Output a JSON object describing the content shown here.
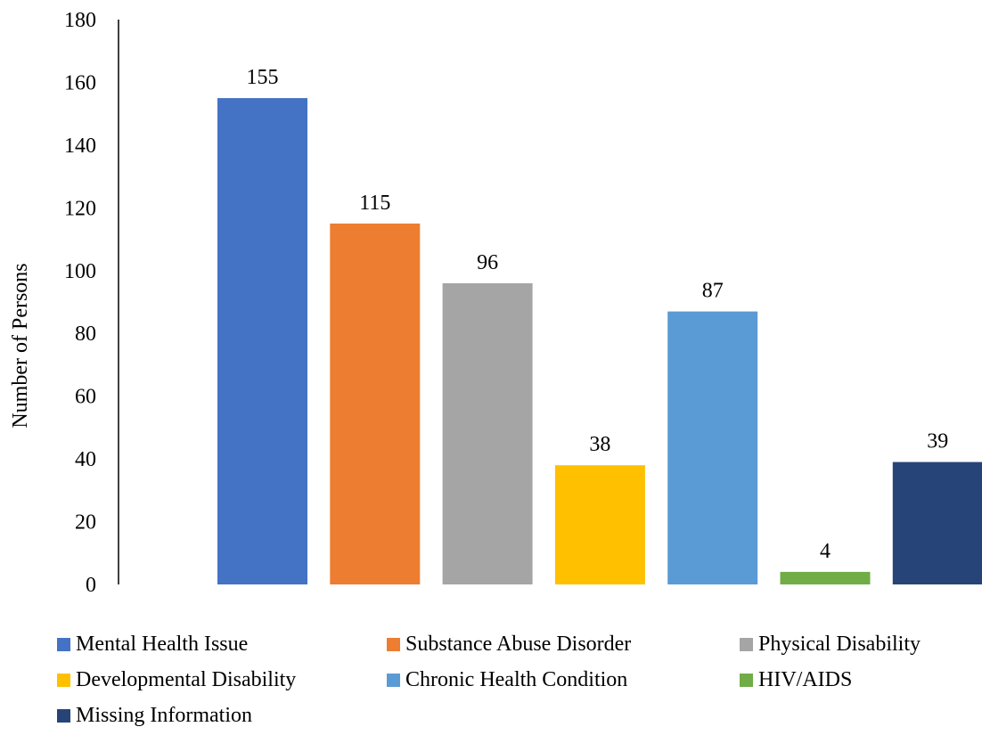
{
  "chart_data": {
    "type": "bar",
    "ylabel": "Number of Persons",
    "ylim": [
      0,
      180
    ],
    "yticks": [
      0,
      20,
      40,
      60,
      80,
      100,
      120,
      140,
      160,
      180
    ],
    "grid": false,
    "legend_position": "bottom",
    "series": [
      {
        "name": "Mental Health Issue",
        "value": 155,
        "color": "#4472C4"
      },
      {
        "name": "Substance Abuse Disorder",
        "value": 115,
        "color": "#ED7D31"
      },
      {
        "name": "Physical Disability",
        "value": 96,
        "color": "#A5A5A5"
      },
      {
        "name": "Developmental Disability",
        "value": 38,
        "color": "#FFC000"
      },
      {
        "name": "Chronic Health Condition",
        "value": 87,
        "color": "#5B9BD5"
      },
      {
        "name": "HIV/AIDS",
        "value": 4,
        "color": "#70AD47"
      },
      {
        "name": "Missing Information",
        "value": 39,
        "color": "#264478"
      }
    ]
  }
}
